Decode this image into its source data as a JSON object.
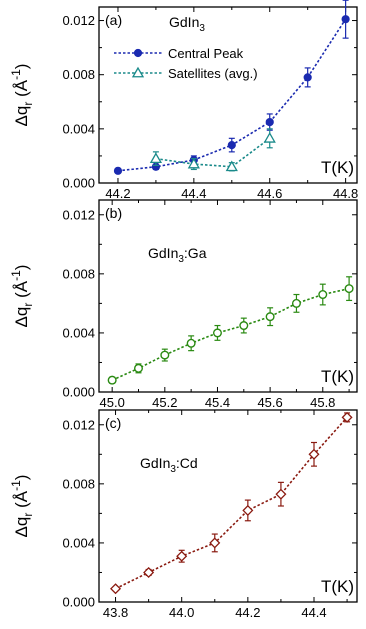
{
  "chart_data": [
    {
      "type": "line",
      "panel_label": "(a)",
      "annotation": {
        "base": "GdIn",
        "sub": "3",
        "rest": ""
      },
      "xunit_label": "T(K)",
      "ylabel": {
        "delta": "Δq",
        "sub": "r",
        "open": " (Å",
        "sup": "-1",
        "close": ")"
      },
      "xlim": [
        44.15,
        44.83
      ],
      "ylim": [
        0,
        0.013
      ],
      "xticks": [
        "44.2",
        "44.4",
        "44.6",
        "44.8"
      ],
      "yticks": [
        "0.000",
        "0.004",
        "0.008",
        "0.012"
      ],
      "legend_position": "top-left",
      "series": [
        {
          "name": "Central Peak",
          "color": "#1a2ab0",
          "marker": "circle-filled",
          "x": [
            44.2,
            44.3,
            44.4,
            44.5,
            44.6,
            44.7,
            44.8
          ],
          "y": [
            0.0009,
            0.0012,
            0.0017,
            0.0028,
            0.0045,
            0.0078,
            0.0121
          ],
          "err": [
            0.0001,
            0.0002,
            0.0003,
            0.0005,
            0.0006,
            0.0007,
            0.0014
          ]
        },
        {
          "name": "Satellites (avg.)",
          "color": "#1a8a8a",
          "marker": "triangle-open",
          "x": [
            44.3,
            44.4,
            44.5,
            44.6
          ],
          "y": [
            0.0018,
            0.0014,
            0.0012,
            0.0033
          ],
          "err": [
            0.0005,
            0.0004,
            0.0003,
            0.0007
          ]
        }
      ]
    },
    {
      "type": "line",
      "panel_label": "(b)",
      "annotation": {
        "base": "GdIn",
        "sub": "3",
        "rest": ":Ga"
      },
      "xunit_label": "T(K)",
      "ylabel": {
        "delta": "Δq",
        "sub": "r",
        "open": " (Å",
        "sup": "-1",
        "close": ")"
      },
      "xlim": [
        44.95,
        45.93
      ],
      "ylim": [
        0,
        0.013
      ],
      "xticks": [
        "45.0",
        "45.2",
        "45.4",
        "45.6",
        "45.8"
      ],
      "yticks": [
        "0.000",
        "0.004",
        "0.008",
        "0.012"
      ],
      "series": [
        {
          "name": "",
          "color": "#2a8a12",
          "marker": "circle-open",
          "x": [
            45.0,
            45.1,
            45.2,
            45.3,
            45.4,
            45.5,
            45.6,
            45.7,
            45.8,
            45.9
          ],
          "y": [
            0.0008,
            0.0016,
            0.0025,
            0.0033,
            0.004,
            0.0045,
            0.0051,
            0.006,
            0.0066,
            0.007
          ],
          "err": [
            0.0002,
            0.0003,
            0.0004,
            0.0005,
            0.0005,
            0.0005,
            0.0006,
            0.0006,
            0.0007,
            0.0008
          ]
        }
      ]
    },
    {
      "type": "line",
      "panel_label": "(c)",
      "annotation": {
        "base": "GdIn",
        "sub": "3",
        "rest": ":Cd"
      },
      "xunit_label": "T(K)",
      "ylabel": {
        "delta": "Δq",
        "sub": "r",
        "open": " (Å",
        "sup": "-1",
        "close": ")"
      },
      "xlim": [
        43.75,
        44.53
      ],
      "ylim": [
        0,
        0.013
      ],
      "xticks": [
        "43.8",
        "44.0",
        "44.2",
        "44.4"
      ],
      "yticks": [
        "0.000",
        "0.004",
        "0.008",
        "0.012"
      ],
      "series": [
        {
          "name": "",
          "color": "#8a1a10",
          "marker": "diamond-open",
          "x": [
            43.8,
            43.9,
            44.0,
            44.1,
            44.2,
            44.3,
            44.4,
            44.5
          ],
          "y": [
            0.0009,
            0.002,
            0.0031,
            0.004,
            0.0062,
            0.0073,
            0.01,
            0.0125
          ],
          "err": [
            0.0001,
            0.0002,
            0.0004,
            0.0006,
            0.0007,
            0.0008,
            0.0008,
            0.0003
          ]
        }
      ]
    }
  ]
}
